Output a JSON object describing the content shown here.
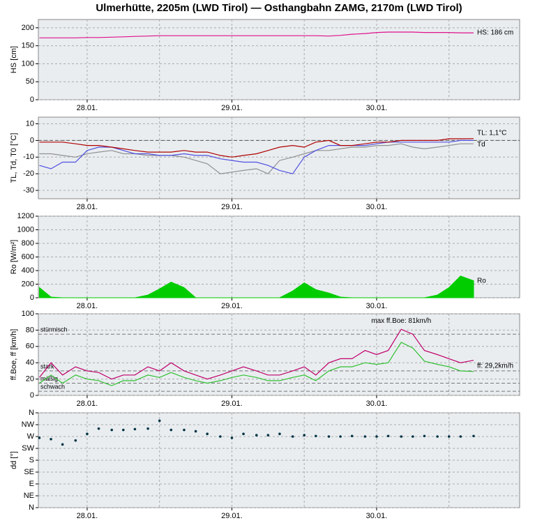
{
  "title": "Ulmerhütte, 2205m (LWD Tirol) — Osthangbahn ZAMG, 2170m (LWD Tirol)",
  "chart_data": [
    {
      "type": "line",
      "y_label": "HS [cm]",
      "axis_color": "#e0108a",
      "x": [
        -0.33,
        -0.25,
        -0.17,
        -0.08,
        0,
        0.08,
        0.17,
        0.25,
        0.33,
        0.42,
        0.5,
        0.58,
        0.67,
        0.75,
        0.83,
        0.92,
        1,
        1.08,
        1.17,
        1.25,
        1.33,
        1.42,
        1.5,
        1.58,
        1.67,
        1.75,
        1.83,
        1.92,
        2,
        2.08,
        2.17,
        2.25,
        2.33,
        2.42,
        2.5,
        2.58,
        2.67
      ],
      "xlim": [
        -0.337,
        2.988
      ],
      "xticks": [
        {
          "value": 0,
          "label": "28.01."
        },
        {
          "value": 1,
          "label": "29.01."
        },
        {
          "value": 2,
          "label": "30.01."
        }
      ],
      "xminor": [
        0.5,
        1.5,
        2.5
      ],
      "ylim": [
        0,
        223
      ],
      "yticks": [
        0,
        50,
        100,
        150,
        200
      ],
      "series": [
        {
          "label": "HS: 186 cm",
          "color": "#e0108a",
          "values": [
            172,
            172,
            172,
            172,
            173,
            173,
            174,
            175,
            176,
            177,
            178,
            178,
            178,
            178,
            178,
            178,
            178,
            178,
            178,
            178,
            178,
            178,
            178,
            178,
            177,
            179,
            182,
            184,
            187,
            188,
            188,
            188,
            187,
            187,
            187,
            186,
            186
          ]
        }
      ]
    },
    {
      "type": "line",
      "y_label": "TL, Td, T0 [°C]",
      "axis_color": "#b00000",
      "zero_line": 0,
      "x": [
        -0.33,
        -0.25,
        -0.17,
        -0.08,
        0,
        0.08,
        0.17,
        0.25,
        0.33,
        0.42,
        0.5,
        0.58,
        0.67,
        0.75,
        0.83,
        0.92,
        1,
        1.08,
        1.17,
        1.25,
        1.33,
        1.42,
        1.5,
        1.58,
        1.67,
        1.75,
        1.83,
        1.92,
        2,
        2.08,
        2.17,
        2.25,
        2.33,
        2.42,
        2.5,
        2.58,
        2.67
      ],
      "xlim": [
        -0.337,
        2.988
      ],
      "xticks": [
        {
          "value": 0,
          "label": "28.01."
        },
        {
          "value": 1,
          "label": "29.01."
        },
        {
          "value": 2,
          "label": "30.01."
        }
      ],
      "xminor": [
        0.5,
        1.5,
        2.5
      ],
      "ylim": [
        -35,
        14
      ],
      "yticks": [
        10,
        0,
        -10,
        -20,
        -30
      ],
      "series": [
        {
          "color": "#909090",
          "values": [
            -8,
            -8,
            -9,
            -10,
            -8,
            -7,
            -6,
            -8,
            -8,
            -9,
            -9,
            -9,
            -10,
            -12,
            -14,
            -20,
            -19,
            -18,
            -17,
            -20,
            -12,
            -10,
            -8,
            -6,
            -6,
            -5,
            -4,
            -4,
            -3,
            -3,
            -2,
            -4,
            -5,
            -4,
            -3,
            -2,
            -2
          ]
        },
        {
          "label": "Td",
          "color": "#5050e0",
          "values": [
            -15,
            -17,
            -13,
            -13,
            -6,
            -4,
            -4,
            -6,
            -8,
            -8,
            -9,
            -9,
            -8,
            -9,
            -9,
            -11,
            -12,
            -13,
            -13,
            -15,
            -18,
            -20,
            -10,
            -6,
            -3,
            -3,
            -3,
            -3,
            -2,
            -1,
            -1,
            -1,
            -1,
            -1,
            -1,
            0,
            0
          ]
        },
        {
          "label": "TL: 1,1°C",
          "color": "#b00000",
          "values": [
            -1,
            -1,
            -1,
            -2,
            -3,
            -3,
            -4,
            -5,
            -6,
            -7,
            -7,
            -7,
            -6,
            -7,
            -7,
            -9,
            -10,
            -9,
            -8,
            -6,
            -4,
            -3,
            -4,
            -1,
            0,
            -3,
            -3,
            -2,
            -1,
            -1,
            0,
            0,
            0,
            0,
            1,
            1,
            1.1
          ]
        }
      ]
    },
    {
      "type": "area",
      "y_label": "Ro [W/m²]",
      "axis_color": "#00a000",
      "x": [
        -0.33,
        -0.25,
        -0.17,
        -0.08,
        0,
        0.08,
        0.17,
        0.25,
        0.33,
        0.42,
        0.5,
        0.58,
        0.67,
        0.75,
        0.83,
        0.92,
        1,
        1.08,
        1.17,
        1.25,
        1.33,
        1.42,
        1.5,
        1.58,
        1.67,
        1.75,
        1.83,
        1.92,
        2,
        2.08,
        2.17,
        2.25,
        2.33,
        2.42,
        2.5,
        2.58,
        2.67
      ],
      "xlim": [
        -0.337,
        2.988
      ],
      "xticks": [
        {
          "value": 0,
          "label": "28.01."
        },
        {
          "value": 1,
          "label": "29.01."
        },
        {
          "value": 2,
          "label": "30.01."
        }
      ],
      "xminor": [
        0.5,
        1.5,
        2.5
      ],
      "ylim": [
        0,
        1200
      ],
      "yticks": [
        0,
        200,
        400,
        600,
        800,
        1000,
        1200
      ],
      "series": [
        {
          "label": "Ro",
          "color": "#00cc00",
          "values": [
            150,
            10,
            0,
            0,
            0,
            0,
            0,
            0,
            0,
            40,
            130,
            230,
            150,
            0,
            0,
            0,
            0,
            0,
            0,
            0,
            0,
            100,
            220,
            120,
            70,
            10,
            0,
            0,
            0,
            0,
            0,
            0,
            0,
            40,
            150,
            320,
            250
          ]
        }
      ]
    },
    {
      "type": "line",
      "y_label": "ff.Boe, ff [km/h]",
      "axis_color": "#00a000",
      "x": [
        -0.33,
        -0.25,
        -0.17,
        -0.08,
        0,
        0.08,
        0.17,
        0.25,
        0.33,
        0.42,
        0.5,
        0.58,
        0.67,
        0.75,
        0.83,
        0.92,
        1,
        1.08,
        1.17,
        1.25,
        1.33,
        1.42,
        1.5,
        1.58,
        1.67,
        1.75,
        1.83,
        1.92,
        2,
        2.08,
        2.17,
        2.25,
        2.33,
        2.42,
        2.5,
        2.58,
        2.67
      ],
      "xlim": [
        -0.337,
        2.988
      ],
      "xticks": [
        {
          "value": 0,
          "label": "28.01."
        },
        {
          "value": 1,
          "label": "29.01."
        },
        {
          "value": 2,
          "label": "30.01."
        }
      ],
      "xminor": [
        0.5,
        1.5,
        2.5
      ],
      "ylim": [
        0,
        100
      ],
      "yticks": [
        0,
        20,
        40,
        60,
        80,
        100
      ],
      "levels": [
        {
          "value": 75,
          "label": "stürmisch"
        },
        {
          "value": 30,
          "label": "stark"
        },
        {
          "value": 15,
          "label": "mäßig"
        },
        {
          "value": 5,
          "label": "schwach"
        }
      ],
      "max_label": "max ff.Boe: 81km/h",
      "series": [
        {
          "color": "#c0006a",
          "values": [
            22,
            40,
            25,
            35,
            30,
            28,
            20,
            25,
            25,
            35,
            30,
            40,
            30,
            25,
            20,
            25,
            30,
            35,
            30,
            25,
            25,
            30,
            35,
            25,
            40,
            45,
            45,
            55,
            50,
            55,
            81,
            75,
            55,
            50,
            45,
            40,
            43
          ]
        },
        {
          "label": "ff: 29,2km/h",
          "color": "#30c030",
          "values": [
            15,
            25,
            15,
            25,
            20,
            18,
            12,
            18,
            18,
            25,
            22,
            28,
            22,
            18,
            15,
            18,
            22,
            25,
            22,
            18,
            18,
            22,
            25,
            18,
            30,
            35,
            35,
            40,
            38,
            40,
            65,
            58,
            42,
            38,
            35,
            30,
            29.2
          ]
        }
      ]
    },
    {
      "type": "scatter",
      "y_label": "dd [°]",
      "axis_color": "#003344",
      "x": [
        -0.33,
        -0.25,
        -0.17,
        -0.08,
        0,
        0.08,
        0.17,
        0.25,
        0.33,
        0.42,
        0.5,
        0.58,
        0.67,
        0.75,
        0.83,
        0.92,
        1,
        1.08,
        1.17,
        1.25,
        1.33,
        1.42,
        1.5,
        1.58,
        1.67,
        1.75,
        1.83,
        1.92,
        2,
        2.08,
        2.17,
        2.25,
        2.33,
        2.42,
        2.5,
        2.58,
        2.67
      ],
      "xlim": [
        -0.337,
        2.988
      ],
      "xticks": [
        {
          "value": 0,
          "label": "28.01."
        },
        {
          "value": 1,
          "label": "29.01."
        },
        {
          "value": 2,
          "label": "30.01."
        }
      ],
      "xminor": [
        0.5,
        1.5,
        2.5
      ],
      "ylim": [
        0,
        360
      ],
      "yticks": [
        {
          "value": 360,
          "label": "N"
        },
        {
          "value": 315,
          "label": "NW"
        },
        {
          "value": 270,
          "label": "W"
        },
        {
          "value": 225,
          "label": "SW"
        },
        {
          "value": 180,
          "label": "S"
        },
        {
          "value": 135,
          "label": "SE"
        },
        {
          "value": 90,
          "label": "E"
        },
        {
          "value": 45,
          "label": "NE"
        },
        {
          "value": 0,
          "label": "N"
        }
      ],
      "series": [
        {
          "color": "#003344",
          "values": [
            265,
            260,
            240,
            255,
            280,
            300,
            295,
            295,
            298,
            300,
            330,
            295,
            295,
            290,
            280,
            270,
            265,
            280,
            275,
            275,
            280,
            270,
            275,
            272,
            270,
            270,
            272,
            270,
            270,
            272,
            270,
            270,
            272,
            270,
            270,
            270,
            272
          ]
        }
      ]
    }
  ]
}
